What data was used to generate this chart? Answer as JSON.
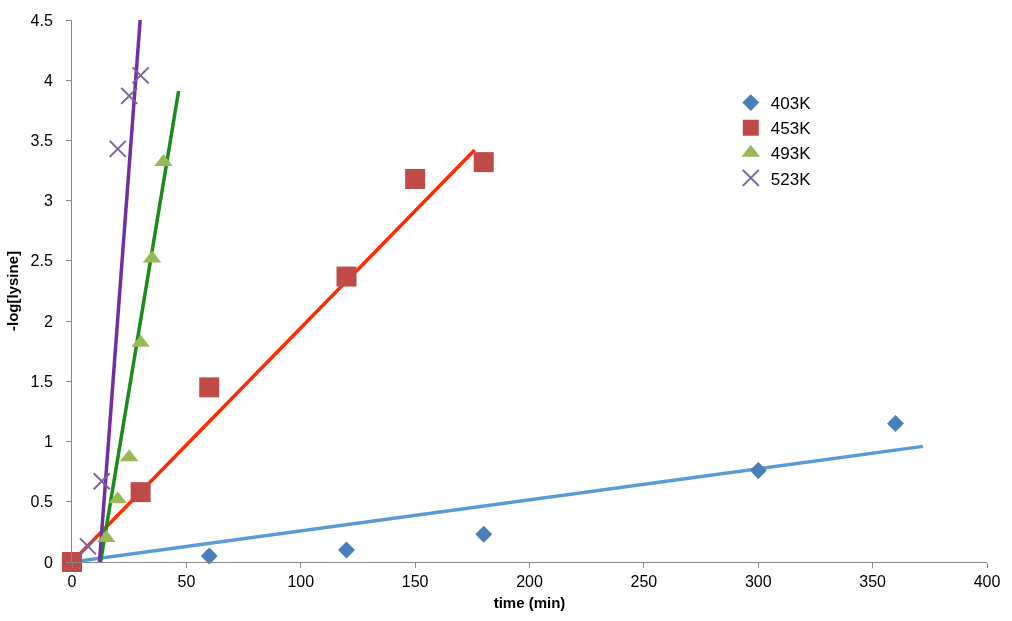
{
  "chart_data": {
    "type": "scatter",
    "xlabel": "time (min)",
    "ylabel": "-log[lysine]",
    "xlim": [
      0,
      400
    ],
    "xticks": [
      0,
      50,
      100,
      150,
      200,
      250,
      300,
      350,
      400
    ],
    "ylim": [
      0,
      4.5
    ],
    "yticks": [
      0,
      0.5,
      1,
      1.5,
      2,
      2.5,
      3,
      3.5,
      4,
      4.5
    ],
    "legend": "top right",
    "series": [
      {
        "name": "403K",
        "color": "#4a7ebb",
        "marker": "diamond",
        "x": [
          60,
          120,
          180,
          300,
          360
        ],
        "values": [
          0.05,
          0.1,
          0.23,
          0.76,
          1.15
        ]
      },
      {
        "name": "453K",
        "color": "#be4b48",
        "marker": "square",
        "x": [
          0,
          30,
          60,
          120,
          150,
          180
        ],
        "values": [
          0,
          0.58,
          1.45,
          2.37,
          3.18,
          3.32
        ]
      },
      {
        "name": "493K",
        "color": "#98b954",
        "marker": "triangle",
        "x": [
          15,
          20,
          25,
          30,
          35,
          40
        ],
        "values": [
          0.2,
          0.52,
          0.87,
          1.82,
          2.52,
          3.32
        ]
      },
      {
        "name": "523K",
        "color": "#7d60a0",
        "marker": "cross",
        "x": [
          7,
          13,
          20,
          25,
          30
        ],
        "values": [
          0.13,
          0.67,
          3.43,
          3.87,
          4.04
        ]
      },
      {
        "type": "line",
        "color": "#5b9bd5",
        "x": [
          0,
          372
        ],
        "values": [
          0,
          0.96
        ]
      },
      {
        "type": "line",
        "color": "#ff2a00",
        "x": [
          0,
          176
        ],
        "values": [
          0,
          3.42
        ]
      },
      {
        "type": "line",
        "color": "#1a8c1a",
        "x": [
          12.5,
          46.6
        ],
        "values": [
          0,
          3.91
        ]
      },
      {
        "type": "line",
        "color": "#7030a0",
        "x": [
          12,
          29.8
        ],
        "values": [
          0,
          4.5
        ]
      }
    ]
  }
}
